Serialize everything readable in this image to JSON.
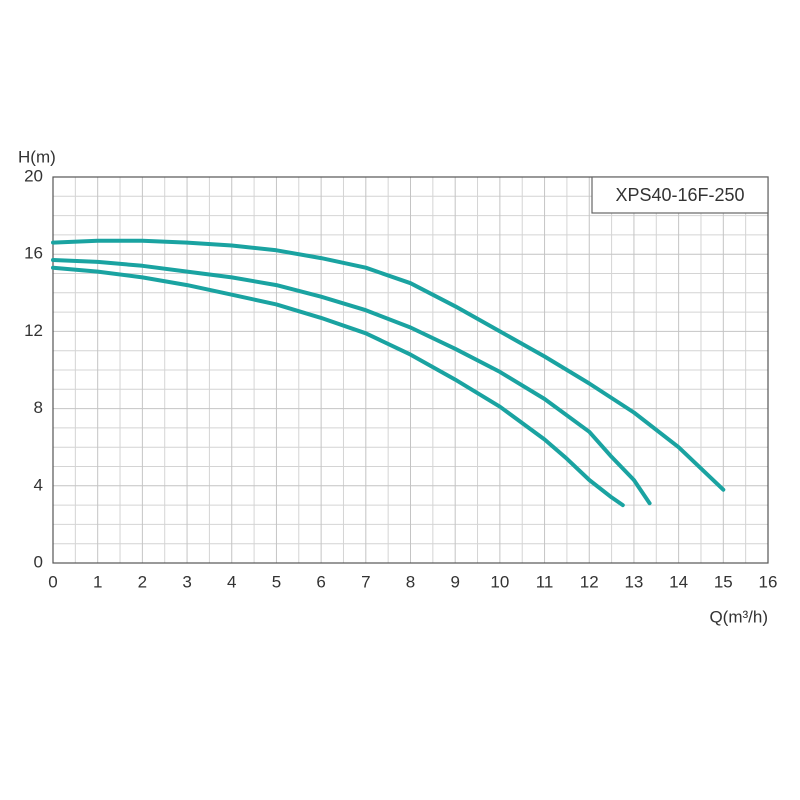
{
  "chart_data": {
    "type": "line",
    "annotation": "XPS40-16F-250",
    "y_label": "H(m)",
    "x_label": "Q(m³/h)",
    "xlim": [
      0,
      16
    ],
    "xticks": [
      0,
      1,
      2,
      3,
      4,
      5,
      6,
      7,
      8,
      9,
      10,
      11,
      12,
      13,
      14,
      15,
      16
    ],
    "ylim": [
      0,
      20
    ],
    "yticks": [
      0,
      4,
      8,
      12,
      16,
      20
    ],
    "grid": true,
    "minor_grid": true,
    "series": [
      {
        "color": "#1aa3a1",
        "x": [
          0,
          1,
          2,
          3,
          4,
          5,
          6,
          7,
          8,
          9,
          10,
          11,
          12,
          13,
          14,
          15
        ],
        "values": [
          16.6,
          16.7,
          16.7,
          16.6,
          16.45,
          16.2,
          15.8,
          15.3,
          14.5,
          13.3,
          12.0,
          10.7,
          9.3,
          7.8,
          6.0,
          3.8
        ]
      },
      {
        "color": "#1aa3a1",
        "x": [
          0,
          1,
          2,
          3,
          4,
          5,
          6,
          7,
          8,
          9,
          10,
          11,
          12,
          12.5,
          13,
          13.35
        ],
        "values": [
          15.7,
          15.6,
          15.4,
          15.1,
          14.8,
          14.4,
          13.8,
          13.1,
          12.2,
          11.1,
          9.9,
          8.5,
          6.8,
          5.5,
          4.3,
          3.1
        ]
      },
      {
        "color": "#1aa3a1",
        "x": [
          0,
          1,
          2,
          3,
          4,
          5,
          6,
          7,
          8,
          9,
          10,
          11,
          11.5,
          12,
          12.5,
          12.75
        ],
        "values": [
          15.3,
          15.1,
          14.8,
          14.4,
          13.9,
          13.4,
          12.7,
          11.9,
          10.8,
          9.5,
          8.1,
          6.4,
          5.4,
          4.3,
          3.4,
          3.0
        ]
      }
    ]
  }
}
